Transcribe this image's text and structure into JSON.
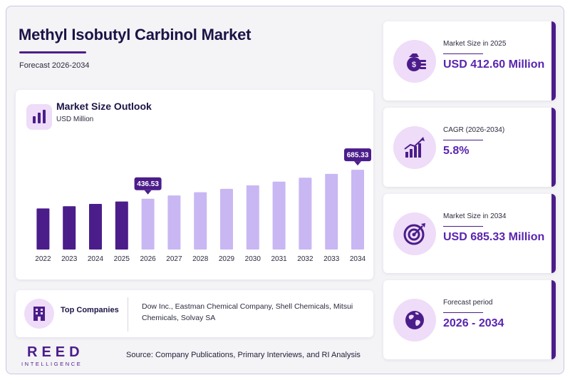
{
  "header": {
    "title": "Methyl Isobutyl Carbinol Market",
    "subtitle": "Forecast 2026-2034"
  },
  "chart_card": {
    "title": "Market Size Outlook",
    "unit": "USD Million"
  },
  "chart_data": {
    "type": "bar",
    "title": "Market Size Outlook",
    "ylabel": "USD Million",
    "categories": [
      "2022",
      "2023",
      "2024",
      "2025",
      "2026",
      "2027",
      "2028",
      "2029",
      "2030",
      "2031",
      "2032",
      "2033",
      "2034"
    ],
    "values": [
      353,
      372,
      392,
      412.6,
      436.53,
      465,
      492,
      521,
      551,
      583,
      617,
      650,
      685.33
    ],
    "labeled_points": [
      {
        "category": "2026",
        "label": "436.53"
      },
      {
        "category": "2034",
        "label": "685.33"
      }
    ],
    "historical_until": "2025",
    "colors": {
      "historical": "#4b1d8a",
      "forecast": "#c9b7f3",
      "callout": "#4b1d8a"
    },
    "grid": false
  },
  "companies": {
    "label": "Top Companies",
    "text": "Dow Inc., Eastman Chemical Company, Shell Chemicals, Mitsui Chemicals, Solvay SA",
    "icon": "building-icon"
  },
  "stats": [
    {
      "label": "Market Size in 2025",
      "value": "USD 412.60 Million",
      "icon": "money-bag-icon"
    },
    {
      "label": "CAGR (2026-2034)",
      "value": "5.8%",
      "icon": "growth-chart-icon"
    },
    {
      "label": "Market Size in 2034",
      "value": "USD 685.33 Million",
      "icon": "target-icon"
    },
    {
      "label": "Forecast period",
      "value": "2026 - 2034",
      "icon": "globe-icon"
    }
  ],
  "footer": {
    "logo_main": "REED",
    "logo_sub": "INTELLIGENCE",
    "source": "Source: Company Publications, Primary Interviews, and RI Analysis"
  },
  "theme": {
    "accent": "#4b1d8a",
    "accent_light": "#c9b7f3",
    "icon_bg": "#eedcf8",
    "value_color": "#5a24b0"
  }
}
